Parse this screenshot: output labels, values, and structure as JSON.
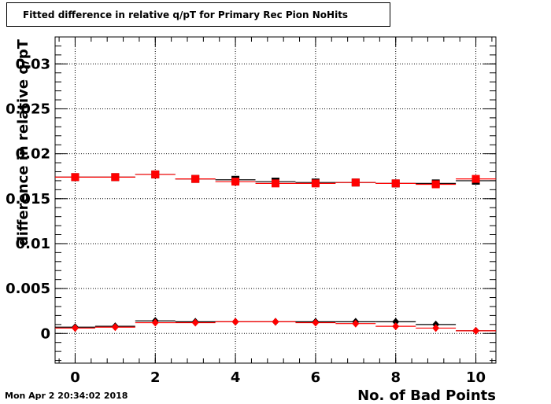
{
  "window": {
    "timestamp": "Mon Apr  2 20:34:02 2018"
  },
  "chart_data": {
    "type": "scatter",
    "title": "Fitted difference in relative q/pT for Primary Rec Pion NoHits",
    "xlabel": "No. of Bad Points",
    "ylabel": "difference in relative q/pT",
    "xlim": [
      -0.5,
      10.5
    ],
    "ylim": [
      -0.0033,
      0.033
    ],
    "grid": true,
    "x_ticks": [
      0,
      2,
      4,
      6,
      8,
      10
    ],
    "x_tick_labels": [
      "0",
      "2",
      "4",
      "6",
      "8",
      "10"
    ],
    "y_ticks": [
      0,
      0.005,
      0.01,
      0.015,
      0.02,
      0.025,
      0.03
    ],
    "y_tick_labels": [
      "0",
      "0.005",
      "0.01",
      "0.015",
      "0.02",
      "0.025",
      "0.03"
    ],
    "series": [
      {
        "marker": "square",
        "color": "#000000",
        "x": [
          0,
          1,
          2,
          3,
          4,
          5,
          6,
          7,
          8,
          9,
          10
        ],
        "y": [
          0.0174,
          0.0174,
          0.0177,
          0.0172,
          0.0171,
          0.0169,
          0.0168,
          0.0168,
          0.0167,
          0.0167,
          0.017
        ]
      },
      {
        "marker": "square",
        "color": "#ff0000",
        "x": [
          0,
          1,
          2,
          3,
          4,
          5,
          6,
          7,
          8,
          9,
          10
        ],
        "y": [
          0.0174,
          0.0174,
          0.0177,
          0.0172,
          0.0169,
          0.0167,
          0.0167,
          0.0168,
          0.0167,
          0.0166,
          0.0172
        ]
      },
      {
        "marker": "diamond",
        "color": "#000000",
        "x": [
          0,
          1,
          2,
          3,
          4,
          5,
          6,
          7,
          8,
          9,
          10
        ],
        "y": [
          0.0007,
          0.0008,
          0.0014,
          0.0013,
          0.0013,
          0.0013,
          0.0013,
          0.0013,
          0.0013,
          0.001,
          0.0003
        ]
      },
      {
        "marker": "diamond",
        "color": "#ff0000",
        "x": [
          0,
          1,
          2,
          3,
          4,
          5,
          6,
          7,
          8,
          9,
          10
        ],
        "y": [
          0.0006,
          0.0007,
          0.0012,
          0.0012,
          0.0013,
          0.0013,
          0.0012,
          0.0011,
          0.0008,
          0.0006,
          0.0003
        ]
      }
    ]
  }
}
